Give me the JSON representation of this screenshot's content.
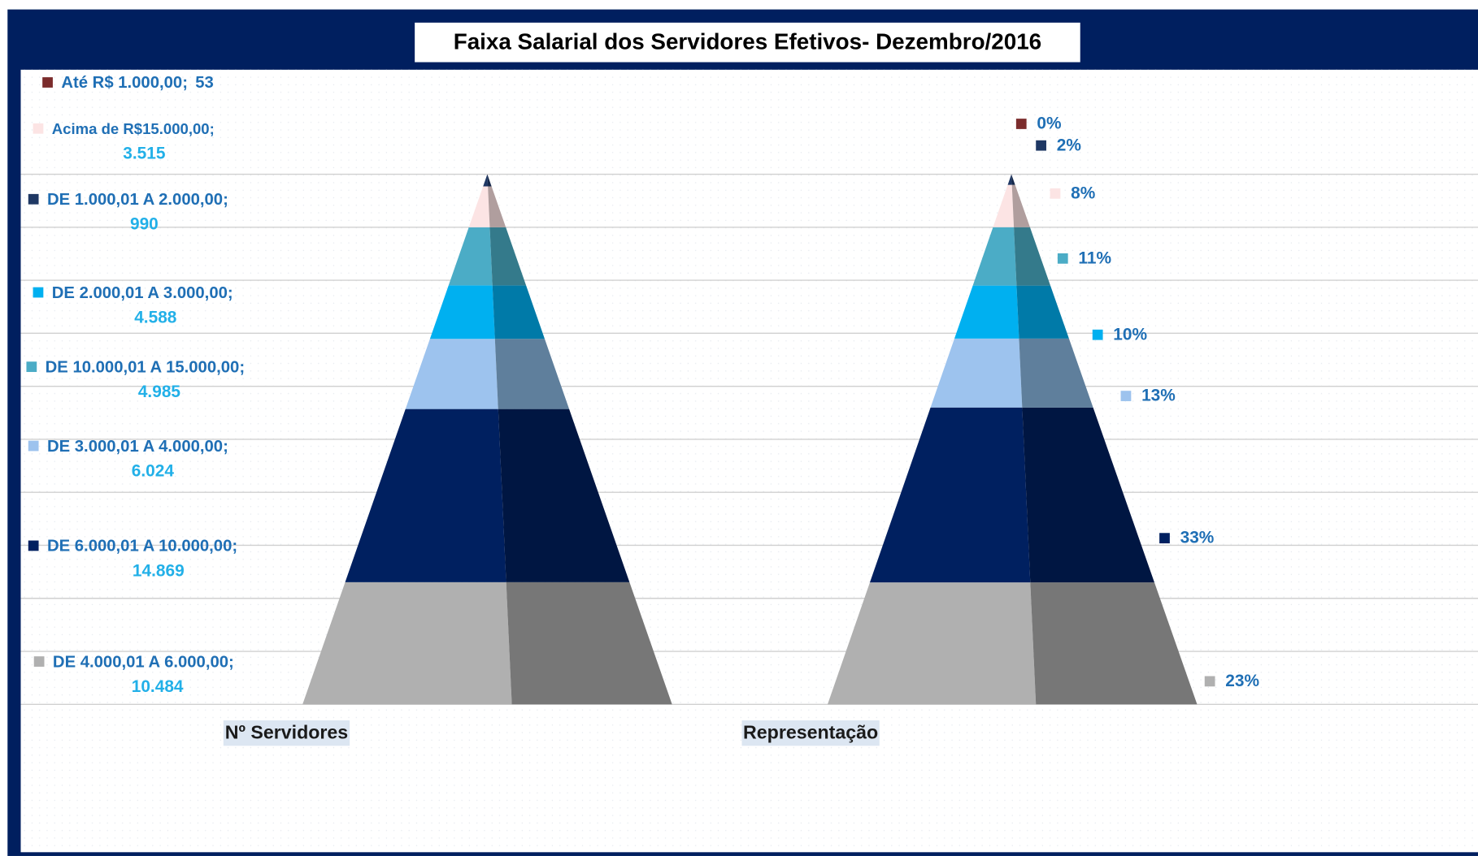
{
  "chart_data": {
    "type": "pyramid",
    "title": "Faixa  Salarial dos  Servidores Efetivos-  Dezembro/2016",
    "categories": [
      "Nº Servidores",
      "Representação"
    ],
    "label_separator": ";",
    "ylim": [
      0,
      100
    ],
    "yticks": [
      0,
      10,
      20,
      30,
      40,
      50,
      60,
      70,
      80,
      90,
      100
    ],
    "grid": true,
    "stacked_percent": true,
    "series": [
      {
        "name": "DE 4.000,01 A 6.000,00",
        "color": "#b0b0b0",
        "shade": "#777777",
        "values": [
          10484,
          23
        ],
        "value_labels": [
          "10.484",
          "23%"
        ]
      },
      {
        "name": "DE 6.000,01 A 10.000,00",
        "color": "#002060",
        "shade": "#001642",
        "values": [
          14869,
          33
        ],
        "value_labels": [
          "14.869",
          "33%"
        ]
      },
      {
        "name": "DE 3.000,01 A 4.000,00",
        "color": "#9dc3ee",
        "shade": "#5f7f9c",
        "values": [
          6024,
          13
        ],
        "value_labels": [
          "6.024",
          "13%"
        ]
      },
      {
        "name": "DE 2.000,01 A 3.000,00",
        "color": "#00b0f0",
        "shade": "#007aa8",
        "values": [
          4588,
          10
        ],
        "value_labels": [
          "4.588",
          "10%"
        ]
      },
      {
        "name": "DE 10.000,01 A 15.000,00",
        "color": "#4bacc6",
        "shade": "#347a8b",
        "values": [
          4985,
          11
        ],
        "value_labels": [
          "4.985",
          "11%"
        ]
      },
      {
        "name": "Acima de R$15.000,00",
        "color": "#fce4e4",
        "shade": "#b09e9e",
        "values": [
          3515,
          8
        ],
        "value_labels": [
          "3.515",
          "8%"
        ]
      },
      {
        "name": "DE 1.000,01 A 2.000,00",
        "color": "#1f3864",
        "shade": "#16284a",
        "values": [
          990,
          2
        ],
        "value_labels": [
          "990",
          "2%"
        ]
      },
      {
        "name": "Até R$ 1.000,00",
        "color": "#7b2c2c",
        "shade": "#5a1f1f",
        "values": [
          53,
          0
        ],
        "value_labels": [
          "53",
          "0%"
        ]
      }
    ]
  }
}
